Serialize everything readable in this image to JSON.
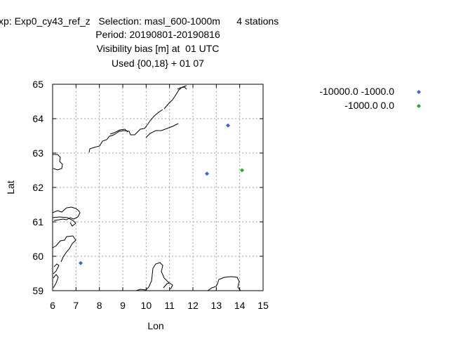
{
  "header": {
    "line1": "xp: Exp0_cy43_ref_z   Selection: masl_600-1000m      4 stations",
    "line2": "Period: 20190801-20190816",
    "line3": "Visibility bias [m] at  01 UTC",
    "line4": "Used {00,18} + 01 07"
  },
  "chart_data": {
    "type": "scatter",
    "title": "Visibility bias [m] at  01 UTC",
    "xlabel": "Lon",
    "ylabel": "Lat",
    "xlim": [
      6,
      15
    ],
    "ylim": [
      59,
      65
    ],
    "x_ticks": [
      "6",
      "7",
      "8",
      "9",
      "10",
      "11",
      "12",
      "13",
      "14",
      "15"
    ],
    "y_ticks": [
      "59",
      "60",
      "61",
      "62",
      "63",
      "64",
      "65"
    ],
    "grid": true,
    "legend_position": "top-right, outside plot",
    "series": [
      {
        "name": "-10000.0 -1000.0",
        "color": "#3a66d6",
        "marker": "diamond",
        "points": [
          [
            13.5,
            63.8
          ],
          [
            12.6,
            62.4
          ],
          [
            7.2,
            59.8
          ]
        ]
      },
      {
        "name": "-1000.0 0.0",
        "color": "#1fb11f",
        "marker": "diamond",
        "points": [
          [
            14.1,
            62.5
          ]
        ]
      }
    ]
  }
}
